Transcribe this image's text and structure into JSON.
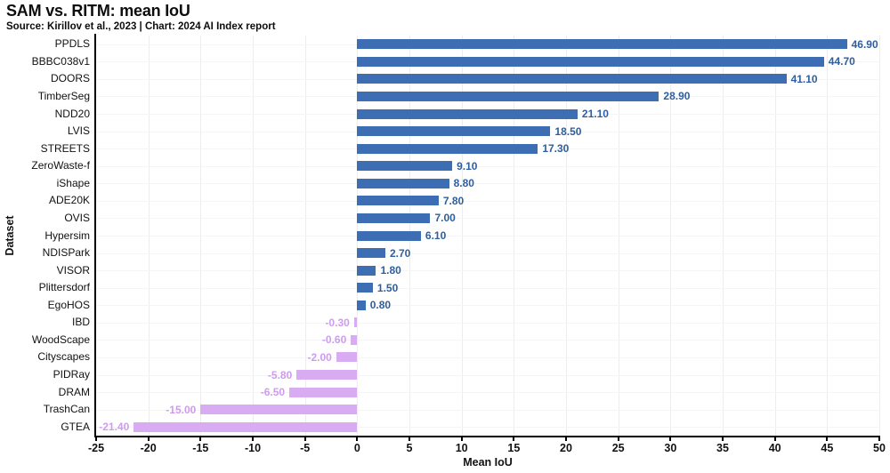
{
  "header": {
    "title": "SAM vs. RITM: mean IoU",
    "subtitle": "Source: Kirillov et al., 2023 | Chart: 2024 AI Index report"
  },
  "chart_data": {
    "type": "bar",
    "orientation": "horizontal",
    "title": "SAM vs. RITM: mean IoU",
    "subtitle": "Source: Kirillov et al., 2023 | Chart: 2024 AI Index report",
    "xlabel": "Mean IoU",
    "ylabel": "Dataset",
    "xlim": [
      -25,
      50
    ],
    "xticks": [
      -25,
      -20,
      -15,
      -10,
      -5,
      0,
      5,
      10,
      15,
      20,
      25,
      30,
      35,
      40,
      45,
      50
    ],
    "grid": true,
    "legend": "none",
    "categories": [
      "PPDLS",
      "BBBC038v1",
      "DOORS",
      "TimberSeg",
      "NDD20",
      "LVIS",
      "STREETS",
      "ZeroWaste-f",
      "iShape",
      "ADE20K",
      "OVIS",
      "Hypersim",
      "NDISPark",
      "VISOR",
      "Plittersdorf",
      "EgoHOS",
      "IBD",
      "WoodScape",
      "Cityscapes",
      "PIDRay",
      "DRAM",
      "TrashCan",
      "GTEA"
    ],
    "values": [
      46.9,
      44.7,
      41.1,
      28.9,
      21.1,
      18.5,
      17.3,
      9.1,
      8.8,
      7.8,
      7.0,
      6.1,
      2.7,
      1.8,
      1.5,
      0.8,
      -0.3,
      -0.6,
      -2.0,
      -5.8,
      -6.5,
      -15.0,
      -21.4
    ],
    "value_labels": [
      "46.90",
      "44.70",
      "41.10",
      "28.90",
      "21.10",
      "18.50",
      "17.30",
      "9.10",
      "8.80",
      "7.80",
      "7.00",
      "6.10",
      "2.70",
      "1.80",
      "1.50",
      "0.80",
      "-0.30",
      "-0.60",
      "-2.00",
      "-5.80",
      "-6.50",
      "-15.00",
      "-21.40"
    ],
    "colors": {
      "positive_bar": "#3d6db3",
      "negative_bar": "#d9abf3",
      "positive_label": "#2d5f9f",
      "negative_label": "#cf9bef",
      "gridline_vertical": "#ededed",
      "gridline_horizontal": "#f5f5f5",
      "axis": "#000000",
      "text": "#111111"
    }
  }
}
